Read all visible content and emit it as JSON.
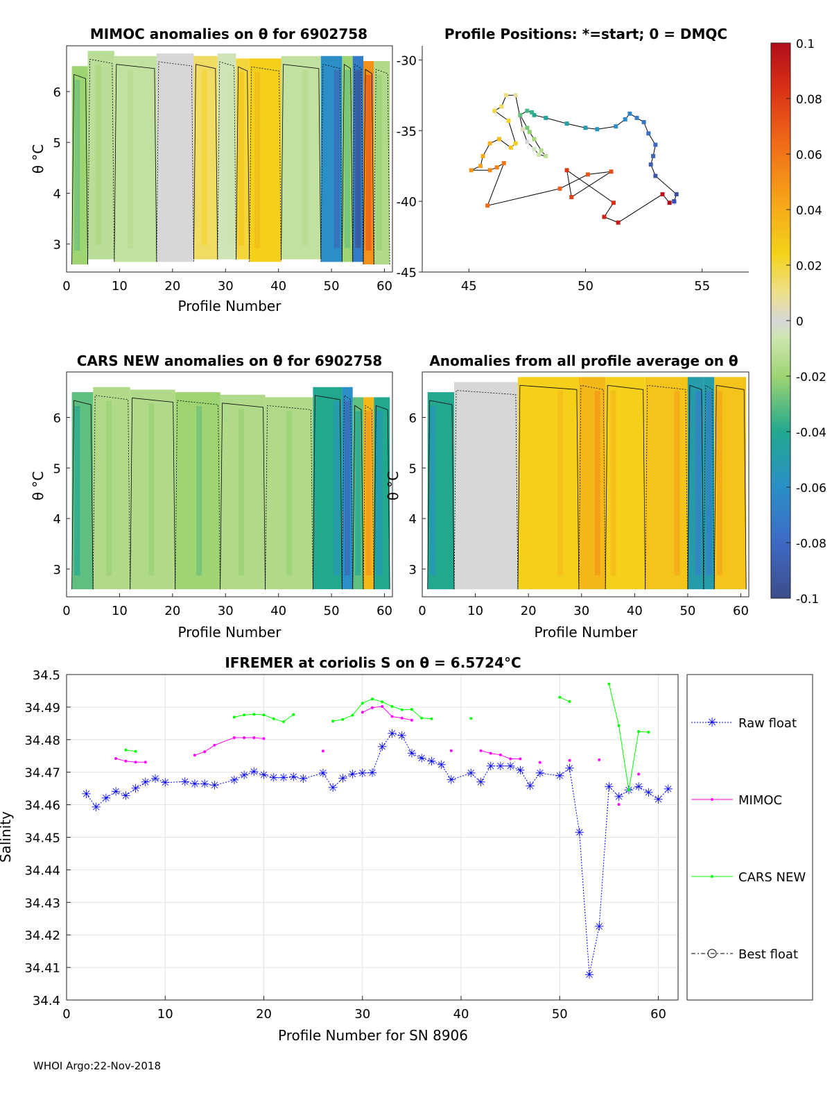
{
  "footer": "WHOI Argo:22-Nov-2018",
  "chart_data": [
    {
      "type": "heatmap",
      "id": "mimoc",
      "title": "MIMOC anomalies on θ  for 6902758",
      "xlabel": "Profile Number",
      "ylabel": "θ °C",
      "xlim": [
        0,
        61.5
      ],
      "ylim": [
        2.45,
        6.9
      ],
      "xticks": [
        0,
        10,
        20,
        30,
        40,
        50,
        60
      ],
      "yticks": [
        3,
        4,
        5,
        6
      ],
      "columns": [
        {
          "x": 2,
          "top": 6.5,
          "bottom": 2.6,
          "value": -0.02
        },
        {
          "x": 6,
          "top": 6.8,
          "bottom": 2.7,
          "value": -0.012
        },
        {
          "x": 12,
          "top": 6.7,
          "bottom": 2.65,
          "value": -0.01
        },
        {
          "x": 22,
          "top": 6.75,
          "bottom": 2.65,
          "value": 0.0
        },
        {
          "x": 26,
          "top": 6.7,
          "bottom": 2.7,
          "value": 0.015
        },
        {
          "x": 31,
          "top": 6.75,
          "bottom": 2.7,
          "value": -0.005
        },
        {
          "x": 33,
          "top": 6.65,
          "bottom": 2.7,
          "value": 0.02
        },
        {
          "x": 36,
          "top": 6.65,
          "bottom": 2.65,
          "value": 0.025
        },
        {
          "x": 45,
          "top": 6.7,
          "bottom": 2.7,
          "value": -0.01
        },
        {
          "x": 51,
          "top": 6.7,
          "bottom": 2.65,
          "value": -0.06
        },
        {
          "x": 53,
          "top": 6.7,
          "bottom": 2.65,
          "value": -0.02
        },
        {
          "x": 55,
          "top": 6.7,
          "bottom": 2.65,
          "value": -0.07
        },
        {
          "x": 57,
          "top": 6.6,
          "bottom": 2.6,
          "value": 0.05
        },
        {
          "x": 59,
          "top": 6.6,
          "bottom": 2.6,
          "value": -0.015
        }
      ]
    },
    {
      "type": "scatter",
      "id": "positions",
      "title": "Profile Positions: *=start; 0 = DMQC",
      "xlim": [
        43,
        57
      ],
      "ylim": [
        -45,
        -29
      ],
      "xticks": [
        45,
        50,
        55
      ],
      "yticks": [
        -30,
        -35,
        -40,
        -45
      ],
      "points": [
        [
          53.8,
          -40.0
        ],
        [
          53.9,
          -39.5
        ],
        [
          53.0,
          -38.2
        ],
        [
          52.8,
          -37.4
        ],
        [
          52.9,
          -36.8
        ],
        [
          53.0,
          -36.0
        ],
        [
          52.7,
          -35.2
        ],
        [
          52.5,
          -34.4
        ],
        [
          52.2,
          -34.1
        ],
        [
          51.9,
          -33.8
        ],
        [
          51.7,
          -34.2
        ],
        [
          51.3,
          -34.7
        ],
        [
          50.5,
          -34.9
        ],
        [
          50.0,
          -34.8
        ],
        [
          49.2,
          -34.5
        ],
        [
          48.3,
          -34.1
        ],
        [
          47.8,
          -33.9
        ],
        [
          47.7,
          -33.7
        ],
        [
          47.5,
          -33.6
        ],
        [
          47.2,
          -33.9
        ],
        [
          47.5,
          -34.8
        ],
        [
          47.6,
          -35.1
        ],
        [
          47.8,
          -35.6
        ],
        [
          48.1,
          -36.4
        ],
        [
          48.3,
          -36.8
        ],
        [
          48.0,
          -36.7
        ],
        [
          47.8,
          -36.3
        ],
        [
          47.5,
          -35.8
        ],
        [
          47.3,
          -34.9
        ],
        [
          47.0,
          -32.5
        ],
        [
          46.6,
          -32.5
        ],
        [
          46.4,
          -33.3
        ],
        [
          46.1,
          -33.6
        ],
        [
          46.7,
          -34.3
        ],
        [
          47.0,
          -35.9
        ],
        [
          46.8,
          -36.2
        ],
        [
          46.3,
          -35.6
        ],
        [
          45.9,
          -35.9
        ],
        [
          45.6,
          -36.8
        ],
        [
          45.5,
          -37.5
        ],
        [
          45.1,
          -37.8
        ],
        [
          45.9,
          -37.8
        ],
        [
          46.2,
          -37.6
        ],
        [
          46.5,
          -37.3
        ],
        [
          45.8,
          -40.3
        ],
        [
          48.9,
          -39.1
        ],
        [
          50.1,
          -38.1
        ],
        [
          51.1,
          -37.9
        ],
        [
          49.4,
          -39.7
        ],
        [
          49.2,
          -37.8
        ],
        [
          51.2,
          -40.1
        ],
        [
          50.8,
          -41.1
        ],
        [
          51.4,
          -41.5
        ],
        [
          53.3,
          -39.5
        ],
        [
          53.6,
          -40.1
        ]
      ]
    },
    {
      "type": "heatmap",
      "id": "cars",
      "title": "CARS NEW anomalies on θ for 6902758",
      "xlabel": "Profile Number",
      "ylabel": "θ °C",
      "xlim": [
        0,
        61.5
      ],
      "ylim": [
        2.45,
        6.9
      ],
      "xticks": [
        0,
        10,
        20,
        30,
        40,
        50,
        60
      ],
      "yticks": [
        3,
        4,
        5,
        6
      ],
      "columns": [
        {
          "x": 2,
          "top": 6.5,
          "bottom": 2.6,
          "value": -0.03
        },
        {
          "x": 8,
          "top": 6.6,
          "bottom": 2.6,
          "value": -0.015
        },
        {
          "x": 16,
          "top": 6.55,
          "bottom": 2.6,
          "value": -0.015
        },
        {
          "x": 25,
          "top": 6.5,
          "bottom": 2.6,
          "value": -0.02
        },
        {
          "x": 33,
          "top": 6.45,
          "bottom": 2.6,
          "value": -0.015
        },
        {
          "x": 42,
          "top": 6.4,
          "bottom": 2.6,
          "value": -0.015
        },
        {
          "x": 51,
          "top": 6.6,
          "bottom": 2.6,
          "value": -0.04
        },
        {
          "x": 53,
          "top": 6.6,
          "bottom": 2.6,
          "value": -0.06
        },
        {
          "x": 55,
          "top": 6.4,
          "bottom": 2.6,
          "value": -0.03
        },
        {
          "x": 57,
          "top": 6.4,
          "bottom": 2.6,
          "value": 0.035
        },
        {
          "x": 59,
          "top": 6.4,
          "bottom": 2.6,
          "value": -0.04
        }
      ]
    },
    {
      "type": "heatmap",
      "id": "allavg",
      "title": "Anomalies from all profile average on θ",
      "xlabel": "Profile Number",
      "ylabel": "θ °C",
      "xlim": [
        0,
        61.5
      ],
      "ylim": [
        2.45,
        6.9
      ],
      "xticks": [
        0,
        10,
        20,
        30,
        40,
        50,
        60
      ],
      "yticks": [
        3,
        4,
        5,
        6
      ],
      "columns": [
        {
          "x": 2,
          "top": 6.5,
          "bottom": 2.6,
          "value": -0.04
        },
        {
          "x": 10,
          "top": 6.7,
          "bottom": 2.6,
          "value": 0.0
        },
        {
          "x": 26,
          "top": 6.8,
          "bottom": 2.6,
          "value": 0.025
        },
        {
          "x": 33,
          "top": 6.8,
          "bottom": 2.6,
          "value": 0.035
        },
        {
          "x": 36,
          "top": 6.8,
          "bottom": 2.6,
          "value": 0.025
        },
        {
          "x": 48,
          "top": 6.8,
          "bottom": 2.6,
          "value": 0.03
        },
        {
          "x": 52,
          "top": 6.8,
          "bottom": 2.6,
          "value": -0.05
        },
        {
          "x": 54,
          "top": 6.8,
          "bottom": 2.6,
          "value": -0.05
        },
        {
          "x": 56,
          "top": 6.8,
          "bottom": 2.6,
          "value": 0.03
        }
      ]
    },
    {
      "type": "colorbar",
      "id": "colorbar",
      "range": [
        -0.1,
        0.1
      ],
      "ticks": [
        0.1,
        0.08,
        0.06,
        0.04,
        0.02,
        0,
        -0.02,
        -0.04,
        -0.06,
        -0.08,
        -0.1
      ],
      "tick_labels": [
        "0.1",
        "0.08",
        "0.06",
        "0.04",
        "0.02",
        "0",
        "-0.02",
        "-0.04",
        "-0.06",
        "-0.08",
        "-0.1"
      ]
    },
    {
      "type": "line",
      "id": "salinity",
      "title": "IFREMER at coriolis S on θ = 6.5724°C",
      "xlabel": "Profile Number for SN 8906",
      "ylabel": "Salinity",
      "xlim": [
        0,
        62
      ],
      "ylim": [
        34.4,
        34.5
      ],
      "xticks": [
        0,
        10,
        20,
        30,
        40,
        50,
        60
      ],
      "yticks": [
        34.4,
        34.41,
        34.42,
        34.43,
        34.44,
        34.45,
        34.46,
        34.47,
        34.48,
        34.49,
        34.5
      ],
      "ytick_labels": [
        "34.4",
        "34.41",
        "34.42",
        "34.43",
        "34.44",
        "34.45",
        "34.46",
        "34.47",
        "34.48",
        "34.49",
        "34.5"
      ],
      "legend": [
        "Raw float",
        "MIMOC",
        "CARS NEW",
        "Best float"
      ],
      "series": [
        {
          "name": "Raw float",
          "color": "#0000ff",
          "x": [
            2,
            3,
            4,
            5,
            6,
            7,
            8,
            9,
            10,
            12,
            13,
            14,
            15,
            17,
            18,
            19,
            20,
            21,
            22,
            23,
            24,
            26,
            27,
            28,
            29,
            30,
            31,
            32,
            33,
            34,
            35,
            36,
            37,
            38,
            39,
            41,
            42,
            43,
            44,
            45,
            46,
            47,
            48,
            50,
            51,
            52,
            53,
            54,
            55,
            56,
            57,
            58,
            59,
            60,
            61
          ],
          "y": [
            34.4633,
            34.4593,
            34.462,
            34.4641,
            34.4628,
            34.465,
            34.4669,
            34.468,
            34.4668,
            34.4671,
            34.4664,
            34.4664,
            34.466,
            34.4676,
            34.4691,
            34.4701,
            34.4692,
            34.4683,
            34.4683,
            34.4685,
            34.468,
            34.4697,
            34.4652,
            34.4681,
            34.4694,
            34.4697,
            34.4698,
            34.4778,
            34.4819,
            34.4812,
            34.4758,
            34.4743,
            34.4734,
            34.4723,
            34.4677,
            34.4697,
            34.4669,
            34.4719,
            34.4719,
            34.4719,
            34.4706,
            34.4658,
            34.4697,
            34.4689,
            34.4712,
            34.4515,
            34.4078,
            34.4226,
            34.4656,
            34.4625,
            34.4645,
            34.4656,
            34.4637,
            34.4616,
            34.4648
          ]
        },
        {
          "name": "MIMOC",
          "color": "#ff00ff",
          "segments": [
            {
              "x": [
                5,
                6,
                7,
                8
              ],
              "y": [
                34.4742,
                34.4734,
                34.4731,
                34.4731
              ]
            },
            {
              "x": [
                13,
                14,
                15,
                17,
                18,
                19,
                20
              ],
              "y": [
                34.4752,
                34.4763,
                34.4783,
                34.4806,
                34.4806,
                34.4806,
                34.4803
              ]
            },
            {
              "x": [
                26
              ],
              "y": [
                34.4765
              ]
            },
            {
              "x": [
                30,
                31,
                32,
                33,
                34,
                35
              ],
              "y": [
                34.4884,
                34.4898,
                34.4902,
                34.4871,
                34.4866,
                34.486
              ]
            },
            {
              "x": [
                39
              ],
              "y": [
                34.4766
              ]
            },
            {
              "x": [
                42,
                43,
                44,
                45,
                46
              ],
              "y": [
                34.4766,
                34.4758,
                34.4753,
                34.4741,
                34.4741
              ]
            },
            {
              "x": [
                48
              ],
              "y": [
                34.473
              ]
            },
            {
              "x": [
                51
              ],
              "y": [
                34.4736
              ]
            },
            {
              "x": [
                54
              ],
              "y": [
                34.4738
              ]
            },
            {
              "x": [
                56
              ],
              "y": [
                34.4601
              ]
            },
            {
              "x": [
                58
              ],
              "y": [
                34.4694
              ]
            }
          ]
        },
        {
          "name": "CARS NEW",
          "color": "#00ff00",
          "segments": [
            {
              "x": [
                6,
                7
              ],
              "y": [
                34.4768,
                34.4764
              ]
            },
            {
              "x": [
                17,
                18,
                19,
                20,
                21,
                22,
                23
              ],
              "y": [
                34.4869,
                34.4876,
                34.4878,
                34.4876,
                34.4864,
                34.4855,
                34.4877
              ]
            },
            {
              "x": [
                27,
                28,
                29,
                30,
                31,
                32,
                33,
                34,
                35,
                36,
                37
              ],
              "y": [
                34.4857,
                34.4862,
                34.4875,
                34.4912,
                34.4925,
                34.4916,
                34.4902,
                34.4892,
                34.4893,
                34.4866,
                34.4864
              ]
            },
            {
              "x": [
                41
              ],
              "y": [
                34.4865
              ]
            },
            {
              "x": [
                50,
                51
              ],
              "y": [
                34.493,
                34.4917
              ]
            },
            {
              "x": [
                55,
                56,
                57,
                58,
                59
              ],
              "y": [
                34.4971,
                34.4843,
                34.4645,
                34.4825,
                34.4823
              ]
            }
          ]
        }
      ]
    }
  ]
}
